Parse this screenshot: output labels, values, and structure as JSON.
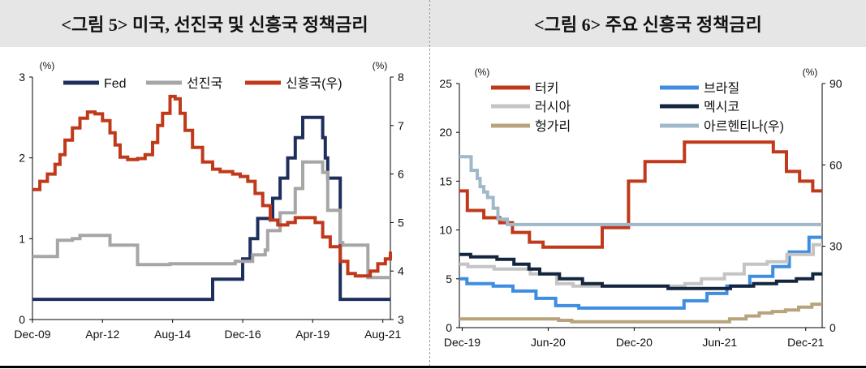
{
  "titles": {
    "left": "<그림 5> 미국, 선진국 및 신흥국 정책금리",
    "right": "<그림 6>  주요 신흥국 정책금리"
  },
  "chart_data": [
    {
      "type": "line",
      "title": "<그림 5> 미국, 선진국 및 신흥국 정책금리",
      "x_ticks": [
        "Dec-09",
        "Apr-12",
        "Aug-14",
        "Dec-16",
        "Apr-19",
        "Aug-21"
      ],
      "x_range": [
        "2009-12",
        "2021-11"
      ],
      "y_left": {
        "unit_label": "(%)",
        "range": [
          0,
          3
        ],
        "ticks": [
          "0",
          "1",
          "2",
          "3"
        ]
      },
      "y_right": {
        "unit_label": "(%)",
        "range": [
          3,
          8
        ],
        "ticks": [
          "3",
          "4",
          "5",
          "6",
          "7",
          "8"
        ]
      },
      "legend": {
        "placement": "top",
        "items": [
          "Fed",
          "선진국",
          "신흥국(우)"
        ]
      },
      "series": [
        {
          "name": "Fed",
          "axis": "left",
          "color": "#1f2f5c",
          "points": [
            [
              "2009-12",
              0.25
            ],
            [
              "2015-11",
              0.25
            ],
            [
              "2015-12",
              0.5
            ],
            [
              "2016-11",
              0.5
            ],
            [
              "2016-12",
              0.75
            ],
            [
              "2017-03",
              1.0
            ],
            [
              "2017-06",
              1.25
            ],
            [
              "2017-12",
              1.5
            ],
            [
              "2018-03",
              1.75
            ],
            [
              "2018-06",
              2.0
            ],
            [
              "2018-09",
              2.25
            ],
            [
              "2018-12",
              2.5
            ],
            [
              "2019-07",
              2.5
            ],
            [
              "2019-08",
              2.25
            ],
            [
              "2019-09",
              2.0
            ],
            [
              "2019-10",
              1.75
            ],
            [
              "2020-03",
              0.25
            ],
            [
              "2021-11",
              0.25
            ]
          ]
        },
        {
          "name": "선진국",
          "axis": "left",
          "color": "#a6a6a6",
          "points": [
            [
              "2009-12",
              0.78
            ],
            [
              "2010-09",
              0.78
            ],
            [
              "2010-10",
              0.98
            ],
            [
              "2011-04",
              1.0
            ],
            [
              "2011-07",
              1.04
            ],
            [
              "2012-06",
              1.04
            ],
            [
              "2012-07",
              0.92
            ],
            [
              "2013-05",
              0.92
            ],
            [
              "2013-06",
              0.68
            ],
            [
              "2014-06",
              0.68
            ],
            [
              "2014-07",
              0.69
            ],
            [
              "2016-08",
              0.69
            ],
            [
              "2016-09",
              0.72
            ],
            [
              "2017-04",
              0.8
            ],
            [
              "2017-09",
              0.86
            ],
            [
              "2017-10",
              1.1
            ],
            [
              "2018-03",
              1.32
            ],
            [
              "2018-09",
              1.62
            ],
            [
              "2018-12",
              1.95
            ],
            [
              "2019-06",
              1.95
            ],
            [
              "2019-08",
              1.82
            ],
            [
              "2019-10",
              1.35
            ],
            [
              "2020-03",
              0.95
            ],
            [
              "2020-04",
              0.92
            ],
            [
              "2021-01",
              0.92
            ],
            [
              "2021-02",
              0.52
            ],
            [
              "2021-11",
              0.52
            ]
          ]
        },
        {
          "name": "신흥국(우)",
          "axis": "right",
          "color": "#c0391b",
          "points": [
            [
              "2009-12",
              5.68
            ],
            [
              "2010-02",
              5.68
            ],
            [
              "2010-03",
              5.85
            ],
            [
              "2010-06",
              6.0
            ],
            [
              "2010-09",
              6.2
            ],
            [
              "2010-11",
              6.4
            ],
            [
              "2011-01",
              6.7
            ],
            [
              "2011-04",
              6.95
            ],
            [
              "2011-07",
              7.15
            ],
            [
              "2011-10",
              7.28
            ],
            [
              "2012-01",
              7.24
            ],
            [
              "2012-04",
              7.1
            ],
            [
              "2012-07",
              6.85
            ],
            [
              "2012-09",
              6.6
            ],
            [
              "2012-11",
              6.35
            ],
            [
              "2013-02",
              6.3
            ],
            [
              "2013-06",
              6.32
            ],
            [
              "2013-09",
              6.4
            ],
            [
              "2013-12",
              6.65
            ],
            [
              "2014-02",
              7.0
            ],
            [
              "2014-04",
              7.25
            ],
            [
              "2014-07",
              7.6
            ],
            [
              "2014-09",
              7.55
            ],
            [
              "2014-11",
              7.25
            ],
            [
              "2015-01",
              6.9
            ],
            [
              "2015-04",
              6.55
            ],
            [
              "2015-08",
              6.25
            ],
            [
              "2015-12",
              6.1
            ],
            [
              "2016-03",
              6.05
            ],
            [
              "2016-08",
              6.0
            ],
            [
              "2016-11",
              5.95
            ],
            [
              "2017-02",
              5.85
            ],
            [
              "2017-05",
              5.6
            ],
            [
              "2017-08",
              5.35
            ],
            [
              "2017-11",
              5.05
            ],
            [
              "2018-02",
              4.95
            ],
            [
              "2018-06",
              5.0
            ],
            [
              "2018-09",
              5.1
            ],
            [
              "2019-01",
              5.1
            ],
            [
              "2019-05",
              5.0
            ],
            [
              "2019-08",
              4.7
            ],
            [
              "2019-11",
              4.5
            ],
            [
              "2020-03",
              4.2
            ],
            [
              "2020-06",
              3.95
            ],
            [
              "2020-09",
              3.9
            ],
            [
              "2020-12",
              3.9
            ],
            [
              "2021-03",
              4.0
            ],
            [
              "2021-06",
              4.15
            ],
            [
              "2021-09",
              4.25
            ],
            [
              "2021-11",
              4.4
            ]
          ]
        }
      ]
    },
    {
      "type": "line",
      "title": "<그림 6>  주요 신흥국 정책금리",
      "x_ticks": [
        "Dec-19",
        "Jun-20",
        "Dec-20",
        "Jun-21",
        "Dec-21"
      ],
      "x_range": [
        "2019-11-25",
        "2022-01-05"
      ],
      "y_left": {
        "unit_label": "(%)",
        "range": [
          0,
          25
        ],
        "ticks": [
          "0",
          "5",
          "10",
          "15",
          "20",
          "25"
        ]
      },
      "y_right": {
        "unit_label": "(%)",
        "range": [
          0,
          90
        ],
        "ticks": [
          "0",
          "30",
          "60",
          "90"
        ]
      },
      "legend": {
        "placement": "top",
        "items": [
          "터키",
          "브라질",
          "러시아",
          "멕시코",
          "헝가리",
          "아르헨티나(우)"
        ]
      },
      "series": [
        {
          "name": "터키",
          "axis": "left",
          "color": "#c0391b",
          "points": [
            [
              "2019-11-25",
              14.0
            ],
            [
              "2019-12-12",
              12.0
            ],
            [
              "2020-01-16",
              11.25
            ],
            [
              "2020-02-19",
              10.75
            ],
            [
              "2020-03-17",
              9.75
            ],
            [
              "2020-04-22",
              8.75
            ],
            [
              "2020-05-21",
              8.25
            ],
            [
              "2020-09-24",
              10.25
            ],
            [
              "2020-11-19",
              15.0
            ],
            [
              "2020-12-24",
              17.0
            ],
            [
              "2021-03-18",
              19.0
            ],
            [
              "2021-09-23",
              18.0
            ],
            [
              "2021-10-21",
              16.0
            ],
            [
              "2021-11-18",
              15.0
            ],
            [
              "2021-12-16",
              14.0
            ],
            [
              "2022-01-05",
              14.0
            ]
          ]
        },
        {
          "name": "브라질",
          "axis": "left",
          "color": "#3f8de0",
          "points": [
            [
              "2019-11-25",
              5.0
            ],
            [
              "2019-12-11",
              4.5
            ],
            [
              "2020-02-05",
              4.25
            ],
            [
              "2020-03-18",
              3.75
            ],
            [
              "2020-05-06",
              3.0
            ],
            [
              "2020-06-17",
              2.25
            ],
            [
              "2020-08-05",
              2.0
            ],
            [
              "2021-03-17",
              2.75
            ],
            [
              "2021-05-05",
              3.5
            ],
            [
              "2021-06-16",
              4.25
            ],
            [
              "2021-08-04",
              5.25
            ],
            [
              "2021-09-22",
              6.25
            ],
            [
              "2021-10-27",
              7.75
            ],
            [
              "2021-12-08",
              9.25
            ],
            [
              "2022-01-05",
              9.25
            ]
          ]
        },
        {
          "name": "러시아",
          "axis": "left",
          "color": "#c4c4c4",
          "points": [
            [
              "2019-11-25",
              6.5
            ],
            [
              "2019-12-13",
              6.25
            ],
            [
              "2020-02-07",
              6.0
            ],
            [
              "2020-04-24",
              5.5
            ],
            [
              "2020-06-19",
              4.5
            ],
            [
              "2020-07-24",
              4.25
            ],
            [
              "2021-03-19",
              4.5
            ],
            [
              "2021-04-23",
              5.0
            ],
            [
              "2021-06-11",
              5.5
            ],
            [
              "2021-07-23",
              6.5
            ],
            [
              "2021-09-10",
              6.75
            ],
            [
              "2021-10-22",
              7.5
            ],
            [
              "2021-12-17",
              8.5
            ],
            [
              "2022-01-05",
              8.5
            ]
          ]
        },
        {
          "name": "멕시코",
          "axis": "left",
          "color": "#14263f",
          "points": [
            [
              "2019-11-25",
              7.5
            ],
            [
              "2019-12-19",
              7.25
            ],
            [
              "2020-02-13",
              7.0
            ],
            [
              "2020-03-20",
              6.5
            ],
            [
              "2020-04-21",
              6.0
            ],
            [
              "2020-05-14",
              5.5
            ],
            [
              "2020-06-25",
              5.0
            ],
            [
              "2020-08-13",
              4.5
            ],
            [
              "2020-09-24",
              4.25
            ],
            [
              "2021-02-11",
              4.0
            ],
            [
              "2021-06-24",
              4.25
            ],
            [
              "2021-08-12",
              4.5
            ],
            [
              "2021-09-30",
              4.75
            ],
            [
              "2021-11-11",
              5.0
            ],
            [
              "2021-12-16",
              5.5
            ],
            [
              "2022-01-05",
              5.5
            ]
          ]
        },
        {
          "name": "헝가리",
          "axis": "left",
          "color": "#b8a47c",
          "points": [
            [
              "2019-11-25",
              0.9
            ],
            [
              "2020-06-23",
              0.75
            ],
            [
              "2020-07-21",
              0.6
            ],
            [
              "2021-06-22",
              0.9
            ],
            [
              "2021-07-27",
              1.2
            ],
            [
              "2021-08-24",
              1.5
            ],
            [
              "2021-09-21",
              1.65
            ],
            [
              "2021-10-19",
              1.8
            ],
            [
              "2021-11-16",
              2.1
            ],
            [
              "2021-12-14",
              2.4
            ],
            [
              "2022-01-05",
              2.4
            ]
          ]
        },
        {
          "name": "아르헨티나(우)",
          "axis": "right",
          "color": "#9fb8ca",
          "points": [
            [
              "2019-11-25",
              63.0
            ],
            [
              "2019-12-20",
              58.0
            ],
            [
              "2020-01-02",
              55.0
            ],
            [
              "2020-01-08",
              52.0
            ],
            [
              "2020-01-16",
              50.0
            ],
            [
              "2020-01-24",
              48.0
            ],
            [
              "2020-02-05",
              44.0
            ],
            [
              "2020-02-15",
              40.0
            ],
            [
              "2020-03-06",
              38.0
            ],
            [
              "2022-01-05",
              38.0
            ]
          ]
        }
      ]
    }
  ]
}
